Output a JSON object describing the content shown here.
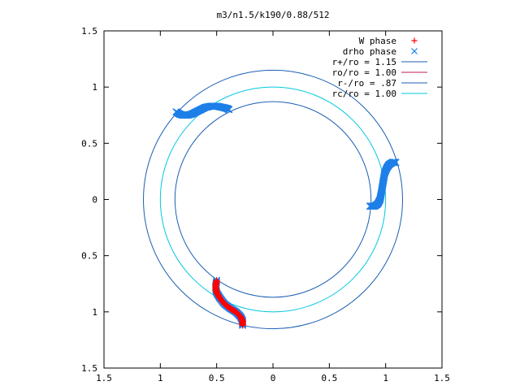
{
  "chart_data": {
    "type": "scatter",
    "title": "m3/n1.5/k190/0.88/512",
    "xlim": [
      -1.5,
      1.5
    ],
    "ylim": [
      -1.5,
      1.5
    ],
    "x_tick_values": [
      -1.5,
      -1,
      -0.5,
      0,
      0.5,
      1,
      1.5
    ],
    "y_tick_values": [
      -1.5,
      -1,
      -0.5,
      0,
      0.5,
      1,
      1.5
    ],
    "x_tick_labels": [
      "1.5",
      "1",
      "0.5",
      "0",
      "0.5",
      "1",
      "1.5"
    ],
    "y_tick_labels": [
      "1.5",
      "1",
      "0.5",
      "0",
      "0.5",
      "1",
      "1.5"
    ],
    "grid": false,
    "legend_placement": "top-right",
    "circles": [
      {
        "name": "r+/ro = 1.15",
        "radius": 1.15,
        "color": "#1a5fb4"
      },
      {
        "name": "ro/ro = 1.00",
        "radius": 1.0,
        "color": "#c2185b",
        "visible": false
      },
      {
        "name": "r-/ro = .87",
        "radius": 0.87,
        "color": "#1a5fb4"
      },
      {
        "name": "rc/ro = 1.00",
        "radius": 1.0,
        "color": "#00c8e0"
      }
    ],
    "series": [
      {
        "name": "W phase",
        "marker": "+",
        "color": "#ff0000",
        "points": [
          [
            -0.5,
            -0.72
          ],
          [
            -0.51,
            -0.78
          ],
          [
            -0.5,
            -0.83
          ],
          [
            -0.47,
            -0.88
          ],
          [
            -0.43,
            -0.93
          ],
          [
            -0.38,
            -0.97
          ],
          [
            -0.33,
            -1.0
          ],
          [
            -0.29,
            -1.04
          ],
          [
            -0.27,
            -1.08
          ],
          [
            -0.27,
            -1.12
          ]
        ]
      },
      {
        "name": "drho phase",
        "marker": "x",
        "color": "#1e7fe8",
        "points": [
          [
            -0.5,
            -0.72
          ],
          [
            -0.51,
            -0.78
          ],
          [
            -0.5,
            -0.83
          ],
          [
            -0.47,
            -0.88
          ],
          [
            -0.43,
            -0.93
          ],
          [
            -0.38,
            -0.97
          ],
          [
            -0.33,
            -1.0
          ],
          [
            -0.29,
            -1.04
          ],
          [
            -0.27,
            -1.08
          ],
          [
            -0.27,
            -1.12
          ],
          [
            -0.86,
            0.78
          ],
          [
            -0.83,
            0.76
          ],
          [
            -0.8,
            0.75
          ],
          [
            -0.76,
            0.75
          ],
          [
            -0.72,
            0.76
          ],
          [
            -0.68,
            0.78
          ],
          [
            -0.64,
            0.8
          ],
          [
            -0.6,
            0.82
          ],
          [
            -0.55,
            0.83
          ],
          [
            -0.5,
            0.83
          ],
          [
            -0.45,
            0.82
          ],
          [
            -0.41,
            0.81
          ],
          [
            -0.39,
            0.8
          ],
          [
            0.86,
            -0.06
          ],
          [
            0.9,
            -0.06
          ],
          [
            0.93,
            -0.04
          ],
          [
            0.95,
            0.0
          ],
          [
            0.96,
            0.05
          ],
          [
            0.97,
            0.11
          ],
          [
            0.98,
            0.17
          ],
          [
            0.99,
            0.23
          ],
          [
            1.01,
            0.28
          ],
          [
            1.03,
            0.31
          ],
          [
            1.06,
            0.33
          ],
          [
            1.09,
            0.33
          ]
        ]
      }
    ]
  }
}
